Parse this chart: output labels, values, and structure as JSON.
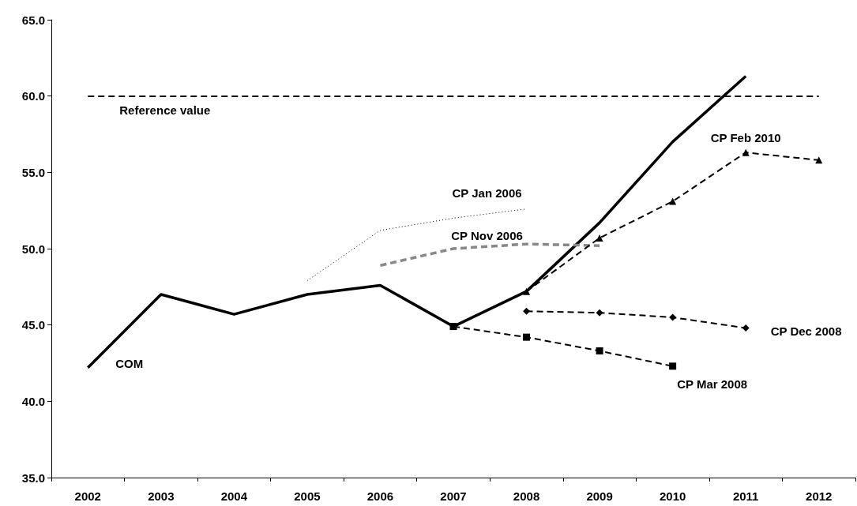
{
  "chart_data": {
    "type": "line",
    "categories": [
      "2002",
      "2003",
      "2004",
      "2005",
      "2006",
      "2007",
      "2008",
      "2009",
      "2010",
      "2011",
      "2012"
    ],
    "ylim": [
      35,
      65
    ],
    "yticks": [
      {
        "value": 35,
        "label": "35.0"
      },
      {
        "value": 40,
        "label": "40.0"
      },
      {
        "value": 45,
        "label": "45.0"
      },
      {
        "value": 50,
        "label": "50.0"
      },
      {
        "value": 55,
        "label": "55.0"
      },
      {
        "value": 60,
        "label": "60.0"
      },
      {
        "value": 65,
        "label": "65.0"
      }
    ],
    "grid": false,
    "legend": false,
    "ref_lines": [
      {
        "axis": "y",
        "value": 60,
        "label": "Reference value",
        "color": "#000000",
        "line_style": "dashed"
      }
    ],
    "series": [
      {
        "name": "COM",
        "color": "#000000",
        "line_style": "solid",
        "marker": "none",
        "values": [
          42.2,
          47.0,
          45.7,
          47.0,
          47.6,
          44.9,
          47.2,
          51.7,
          57.0,
          61.3,
          null
        ]
      },
      {
        "name": "CP Jan 2006",
        "color": "#000000",
        "line_style": "dotted",
        "marker": "none",
        "values": [
          null,
          null,
          null,
          47.9,
          51.2,
          52.0,
          52.6,
          null,
          null,
          null,
          null
        ]
      },
      {
        "name": "CP Nov 2006",
        "color": "#888888",
        "line_style": "dashed",
        "marker": "none",
        "values": [
          null,
          null,
          null,
          null,
          48.9,
          50.0,
          50.3,
          50.2,
          null,
          null,
          null
        ]
      },
      {
        "name": "CP Feb 2010",
        "color": "#000000",
        "line_style": "dashed",
        "marker": "triangle",
        "values": [
          null,
          null,
          null,
          null,
          null,
          null,
          47.2,
          50.7,
          53.1,
          56.3,
          55.8
        ]
      },
      {
        "name": "CP Dec 2008",
        "color": "#000000",
        "line_style": "dashed",
        "marker": "diamond",
        "values": [
          null,
          null,
          null,
          null,
          null,
          null,
          45.9,
          45.8,
          45.5,
          44.8,
          null
        ]
      },
      {
        "name": "CP Mar 2008",
        "color": "#000000",
        "line_style": "dashed",
        "marker": "square",
        "values": [
          null,
          null,
          null,
          null,
          null,
          44.9,
          44.2,
          43.3,
          42.3,
          null,
          null
        ]
      }
    ]
  }
}
